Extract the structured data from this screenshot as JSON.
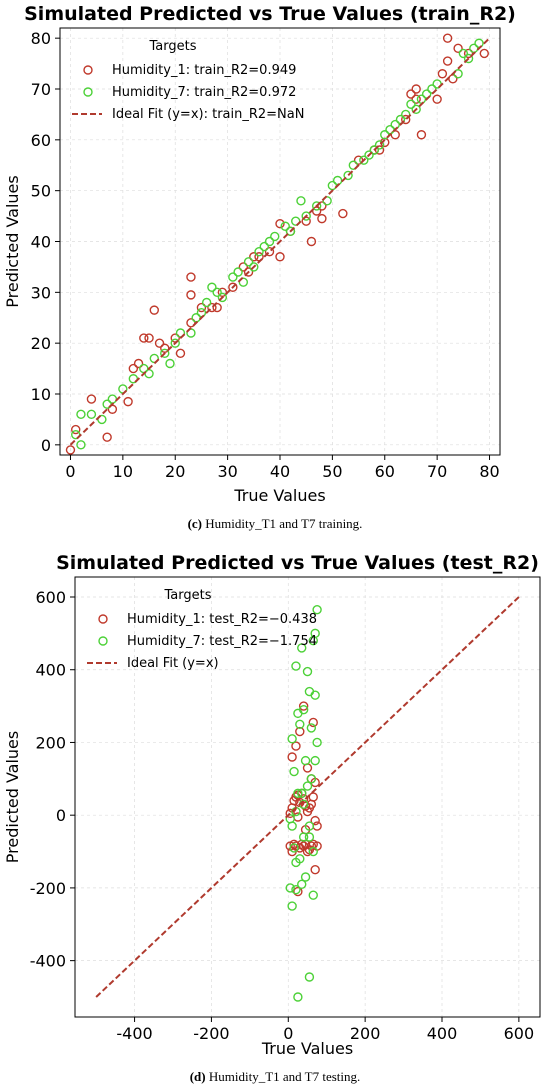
{
  "chart_data": [
    {
      "type": "scatter",
      "title": "Simulated Predicted vs True Values (train_R2)",
      "xlabel": "True Values",
      "ylabel": "Predicted Values",
      "xlim": [
        -2,
        82
      ],
      "ylim": [
        -2,
        82
      ],
      "xticks": [
        "0",
        "10",
        "20",
        "30",
        "40",
        "50",
        "60",
        "70",
        "80"
      ],
      "yticks": [
        "0",
        "10",
        "20",
        "30",
        "40",
        "50",
        "60",
        "70",
        "80"
      ],
      "grid": true,
      "legend": {
        "title": "Targets",
        "placement": "top-left"
      },
      "caption": {
        "label": "(c)",
        "text": " Humidity_T1 and T7 training."
      },
      "series": [
        {
          "name": "Humidity_1: train_R2=0.949",
          "color": "#c0392b",
          "points": [
            [
              0,
              -1
            ],
            [
              1,
              3
            ],
            [
              4,
              9
            ],
            [
              7,
              1.5
            ],
            [
              8,
              7
            ],
            [
              11,
              8.5
            ],
            [
              12,
              15
            ],
            [
              13,
              16
            ],
            [
              14,
              21
            ],
            [
              15,
              21
            ],
            [
              16,
              26.5
            ],
            [
              17,
              20
            ],
            [
              18,
              19
            ],
            [
              20,
              21
            ],
            [
              21,
              18
            ],
            [
              23,
              33
            ],
            [
              23,
              24
            ],
            [
              23,
              29.5
            ],
            [
              25,
              27
            ],
            [
              27,
              27
            ],
            [
              28,
              27
            ],
            [
              29,
              30
            ],
            [
              31,
              31
            ],
            [
              33,
              35
            ],
            [
              34,
              34
            ],
            [
              35,
              37
            ],
            [
              36,
              37
            ],
            [
              38,
              38
            ],
            [
              40,
              43.5
            ],
            [
              40,
              37
            ],
            [
              42,
              42
            ],
            [
              45,
              44
            ],
            [
              46,
              40
            ],
            [
              47,
              46
            ],
            [
              48,
              47
            ],
            [
              48,
              44.5
            ],
            [
              52,
              45.5
            ],
            [
              55,
              56
            ],
            [
              58,
              58
            ],
            [
              59,
              58
            ],
            [
              60,
              59.5
            ],
            [
              62,
              61
            ],
            [
              64,
              64
            ],
            [
              65,
              69
            ],
            [
              66,
              70
            ],
            [
              66,
              68
            ],
            [
              67,
              61
            ],
            [
              70,
              68
            ],
            [
              71,
              73
            ],
            [
              72,
              80
            ],
            [
              72,
              75.5
            ],
            [
              73,
              72
            ],
            [
              74,
              78
            ],
            [
              76,
              77
            ],
            [
              79,
              77
            ]
          ]
        },
        {
          "name": "Humidity_7: train_R2=0.972",
          "color": "#4cd137",
          "points": [
            [
              1,
              2
            ],
            [
              2,
              0
            ],
            [
              2,
              6
            ],
            [
              4,
              6
            ],
            [
              6,
              5
            ],
            [
              7,
              8
            ],
            [
              8,
              9
            ],
            [
              10,
              11
            ],
            [
              12,
              13
            ],
            [
              14,
              15
            ],
            [
              15,
              14
            ],
            [
              16,
              17
            ],
            [
              18,
              18
            ],
            [
              19,
              16
            ],
            [
              20,
              20
            ],
            [
              21,
              22
            ],
            [
              23,
              22
            ],
            [
              24,
              25
            ],
            [
              25,
              26
            ],
            [
              26,
              28
            ],
            [
              27,
              31
            ],
            [
              28,
              30
            ],
            [
              29,
              29
            ],
            [
              31,
              33
            ],
            [
              32,
              34
            ],
            [
              33,
              32
            ],
            [
              34,
              36
            ],
            [
              35,
              35
            ],
            [
              36,
              38
            ],
            [
              37,
              39
            ],
            [
              38,
              40
            ],
            [
              39,
              41
            ],
            [
              41,
              43
            ],
            [
              42,
              42
            ],
            [
              43,
              44
            ],
            [
              44,
              48
            ],
            [
              45,
              45
            ],
            [
              47,
              47
            ],
            [
              49,
              48
            ],
            [
              50,
              51
            ],
            [
              51,
              52
            ],
            [
              53,
              53
            ],
            [
              54,
              55
            ],
            [
              56,
              56
            ],
            [
              57,
              57
            ],
            [
              58,
              58
            ],
            [
              59,
              59
            ],
            [
              60,
              61
            ],
            [
              61,
              62
            ],
            [
              62,
              63
            ],
            [
              63,
              64
            ],
            [
              64,
              65
            ],
            [
              65,
              67
            ],
            [
              66,
              66
            ],
            [
              67,
              68
            ],
            [
              68,
              69
            ],
            [
              69,
              70
            ],
            [
              70,
              71
            ],
            [
              74,
              73
            ],
            [
              75,
              77
            ],
            [
              76,
              76
            ],
            [
              77,
              78
            ],
            [
              78,
              79
            ]
          ]
        },
        {
          "name": "Ideal Fit (y=x): train_R2=NaN",
          "color": "#b03a2e",
          "line": [
            [
              0,
              0
            ],
            [
              80,
              80
            ]
          ]
        }
      ]
    },
    {
      "type": "scatter",
      "title": "Simulated Predicted vs True Values (test_R2)",
      "xlabel": "True Values",
      "ylabel": "Predicted Values",
      "xlim": [
        -555,
        655
      ],
      "ylim": [
        -555,
        655
      ],
      "xticks": [
        "-400",
        "-200",
        "0",
        "200",
        "400",
        "600"
      ],
      "yticks": [
        "-400",
        "-200",
        "0",
        "200",
        "400",
        "600"
      ],
      "grid": true,
      "legend": {
        "title": "Targets",
        "placement": "top-left"
      },
      "caption": {
        "label": "(d)",
        "text": " Humidity_T1 and T7 testing."
      },
      "series": [
        {
          "name": "Humidity_1: test_R2=−0.438",
          "color": "#c0392b",
          "points": [
            [
              5,
              -85
            ],
            [
              10,
              -100
            ],
            [
              15,
              -80
            ],
            [
              20,
              -85
            ],
            [
              25,
              -210
            ],
            [
              30,
              -90
            ],
            [
              35,
              -80
            ],
            [
              40,
              -85
            ],
            [
              45,
              -80
            ],
            [
              50,
              -100
            ],
            [
              55,
              -95
            ],
            [
              60,
              -85
            ],
            [
              65,
              -80
            ],
            [
              70,
              -150
            ],
            [
              75,
              -85
            ],
            [
              5,
              5
            ],
            [
              10,
              20
            ],
            [
              15,
              40
            ],
            [
              20,
              50
            ],
            [
              25,
              55
            ],
            [
              30,
              35
            ],
            [
              35,
              60
            ],
            [
              40,
              45
            ],
            [
              45,
              25
            ],
            [
              50,
              10
            ],
            [
              55,
              20
            ],
            [
              60,
              30
            ],
            [
              65,
              50
            ],
            [
              70,
              -15
            ],
            [
              75,
              -30
            ],
            [
              10,
              160
            ],
            [
              20,
              190
            ],
            [
              30,
              230
            ],
            [
              40,
              300
            ],
            [
              50,
              130
            ],
            [
              60,
              100
            ],
            [
              65,
              255
            ],
            [
              70,
              90
            ],
            [
              25,
              -5
            ],
            [
              45,
              -40
            ]
          ]
        },
        {
          "name": "Humidity_7: test_R2=−1.754",
          "color": "#4cd137",
          "points": [
            [
              25,
              -500
            ],
            [
              55,
              -445
            ],
            [
              10,
              -250
            ],
            [
              20,
              -205
            ],
            [
              35,
              -190
            ],
            [
              45,
              -170
            ],
            [
              65,
              -220
            ],
            [
              5,
              -200
            ],
            [
              30,
              -120
            ],
            [
              15,
              -90
            ],
            [
              40,
              -60
            ],
            [
              55,
              -30
            ],
            [
              5,
              -10
            ],
            [
              20,
              10
            ],
            [
              35,
              60
            ],
            [
              50,
              80
            ],
            [
              60,
              100
            ],
            [
              70,
              150
            ],
            [
              75,
              200
            ],
            [
              10,
              210
            ],
            [
              25,
              280
            ],
            [
              40,
              290
            ],
            [
              55,
              340
            ],
            [
              70,
              330
            ],
            [
              20,
              410
            ],
            [
              35,
              460
            ],
            [
              50,
              395
            ],
            [
              65,
              480
            ],
            [
              70,
              500
            ],
            [
              75,
              565
            ],
            [
              30,
              250
            ],
            [
              60,
              240
            ],
            [
              45,
              150
            ],
            [
              15,
              120
            ],
            [
              25,
              60
            ],
            [
              40,
              30
            ],
            [
              55,
              -60
            ],
            [
              65,
              -100
            ],
            [
              10,
              -30
            ],
            [
              20,
              -130
            ]
          ]
        },
        {
          "name": "Ideal Fit (y=x)",
          "color": "#b03a2e",
          "line": [
            [
              -500,
              -500
            ],
            [
              600,
              600
            ]
          ]
        }
      ]
    }
  ]
}
